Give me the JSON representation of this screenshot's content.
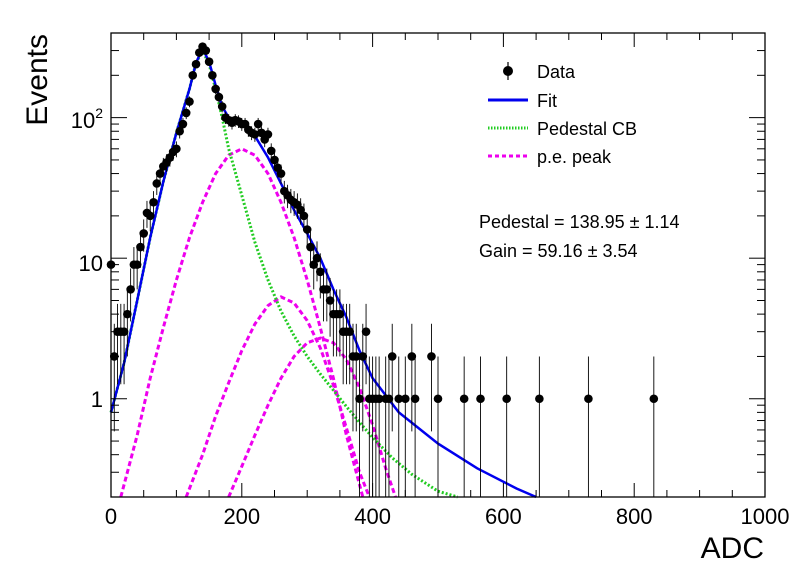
{
  "chart_data": {
    "type": "scatter",
    "title": "",
    "xlabel": "ADC",
    "ylabel": "Events",
    "xlim": [
      0,
      1000
    ],
    "ylim": [
      0.2,
      400
    ],
    "y_scale": "log",
    "grid": false,
    "legend_position": "top-right",
    "x_ticks": [
      "0",
      "200",
      "400",
      "600",
      "800",
      "1000"
    ],
    "y_ticks": [
      {
        "value": 1,
        "base": "1",
        "exp": ""
      },
      {
        "value": 10,
        "base": "10",
        "exp": ""
      },
      {
        "value": 100,
        "base": "10",
        "exp": "2"
      }
    ],
    "legend": [
      {
        "label": "Data",
        "style": "marker",
        "color": "#000000"
      },
      {
        "label": "Fit",
        "style": "solid",
        "color": "#0000ee"
      },
      {
        "label": "Pedestal CB",
        "style": "dotted",
        "color": "#22cc22"
      },
      {
        "label": "p.e. peak",
        "style": "dashed",
        "color": "#ee00ee"
      }
    ],
    "annotations": [
      "Pedestal = 138.95 ± 1.14",
      "Gain = 59.16 ± 3.54"
    ],
    "fit_parameters": {
      "pedestal": 138.95,
      "pedestal_err": 1.14,
      "gain": 59.16,
      "gain_err": 3.54
    },
    "series": [
      {
        "name": "Data",
        "kind": "points",
        "points": [
          [
            0,
            9
          ],
          [
            5,
            2
          ],
          [
            10,
            3
          ],
          [
            15,
            3
          ],
          [
            20,
            3
          ],
          [
            25,
            4
          ],
          [
            30,
            6
          ],
          [
            35,
            9
          ],
          [
            40,
            9
          ],
          [
            45,
            12
          ],
          [
            50,
            15
          ],
          [
            55,
            21
          ],
          [
            60,
            20
          ],
          [
            65,
            25
          ],
          [
            70,
            34
          ],
          [
            75,
            40
          ],
          [
            80,
            45
          ],
          [
            85,
            48
          ],
          [
            90,
            52
          ],
          [
            95,
            57
          ],
          [
            100,
            60
          ],
          [
            105,
            80
          ],
          [
            110,
            90
          ],
          [
            115,
            108
          ],
          [
            120,
            130
          ],
          [
            125,
            200
          ],
          [
            130,
            240
          ],
          [
            135,
            290
          ],
          [
            140,
            320
          ],
          [
            145,
            300
          ],
          [
            150,
            250
          ],
          [
            155,
            200
          ],
          [
            160,
            160
          ],
          [
            165,
            140
          ],
          [
            170,
            120
          ],
          [
            175,
            100
          ],
          [
            180,
            96
          ],
          [
            185,
            92
          ],
          [
            190,
            96
          ],
          [
            195,
            94
          ],
          [
            200,
            90
          ],
          [
            205,
            90
          ],
          [
            210,
            82
          ],
          [
            215,
            78
          ],
          [
            220,
            76
          ],
          [
            225,
            90
          ],
          [
            230,
            78
          ],
          [
            235,
            70
          ],
          [
            240,
            76
          ],
          [
            245,
            58
          ],
          [
            250,
            50
          ],
          [
            255,
            44
          ],
          [
            260,
            40
          ],
          [
            265,
            30
          ],
          [
            270,
            28
          ],
          [
            275,
            26
          ],
          [
            280,
            25
          ],
          [
            285,
            24
          ],
          [
            290,
            22
          ],
          [
            295,
            20
          ],
          [
            300,
            16
          ],
          [
            305,
            12
          ],
          [
            310,
            9
          ],
          [
            315,
            10
          ],
          [
            320,
            8
          ],
          [
            325,
            6
          ],
          [
            330,
            6
          ],
          [
            335,
            5
          ],
          [
            340,
            4
          ],
          [
            345,
            4
          ],
          [
            350,
            4
          ],
          [
            355,
            3
          ],
          [
            360,
            3
          ],
          [
            365,
            3
          ],
          [
            370,
            2
          ],
          [
            375,
            2
          ],
          [
            380,
            1
          ],
          [
            385,
            2
          ],
          [
            390,
            3
          ],
          [
            395,
            1
          ],
          [
            400,
            1
          ],
          [
            405,
            1
          ],
          [
            410,
            1
          ],
          [
            420,
            1
          ],
          [
            425,
            1
          ],
          [
            430,
            2
          ],
          [
            440,
            1
          ],
          [
            450,
            1
          ],
          [
            460,
            2
          ],
          [
            465,
            1
          ],
          [
            490,
            2
          ],
          [
            500,
            1
          ],
          [
            540,
            1
          ],
          [
            565,
            1
          ],
          [
            605,
            1
          ],
          [
            655,
            1
          ],
          [
            730,
            1
          ],
          [
            830,
            1
          ]
        ]
      },
      {
        "name": "Fit",
        "kind": "curve",
        "points": [
          [
            0,
            0.8
          ],
          [
            20,
            1.8
          ],
          [
            40,
            5
          ],
          [
            60,
            14
          ],
          [
            80,
            35
          ],
          [
            100,
            78
          ],
          [
            120,
            160
          ],
          [
            130,
            245
          ],
          [
            140,
            310
          ],
          [
            150,
            250
          ],
          [
            160,
            170
          ],
          [
            170,
            120
          ],
          [
            180,
            100
          ],
          [
            190,
            96
          ],
          [
            200,
            92
          ],
          [
            210,
            84
          ],
          [
            220,
            74
          ],
          [
            240,
            52
          ],
          [
            260,
            34
          ],
          [
            280,
            22
          ],
          [
            300,
            15
          ],
          [
            320,
            10
          ],
          [
            340,
            6
          ],
          [
            360,
            3.8
          ],
          [
            380,
            2.2
          ],
          [
            400,
            1.4
          ],
          [
            440,
            0.8
          ],
          [
            500,
            0.48
          ],
          [
            560,
            0.32
          ],
          [
            620,
            0.23
          ],
          [
            650,
            0.2
          ]
        ]
      },
      {
        "name": "Pedestal CB",
        "kind": "curve",
        "points": [
          [
            0,
            0.8
          ],
          [
            20,
            1.8
          ],
          [
            40,
            5
          ],
          [
            60,
            14
          ],
          [
            80,
            35
          ],
          [
            100,
            78
          ],
          [
            120,
            160
          ],
          [
            130,
            245
          ],
          [
            140,
            300
          ],
          [
            150,
            240
          ],
          [
            160,
            160
          ],
          [
            170,
            100
          ],
          [
            180,
            60
          ],
          [
            200,
            28
          ],
          [
            220,
            13
          ],
          [
            240,
            7
          ],
          [
            260,
            4.2
          ],
          [
            280,
            2.8
          ],
          [
            300,
            2
          ],
          [
            320,
            1.5
          ],
          [
            340,
            1.15
          ],
          [
            360,
            0.88
          ],
          [
            380,
            0.68
          ],
          [
            400,
            0.53
          ],
          [
            430,
            0.38
          ],
          [
            460,
            0.29
          ],
          [
            500,
            0.22
          ],
          [
            530,
            0.2
          ]
        ]
      },
      {
        "name": "p.e. peak 1",
        "kind": "curve",
        "points": [
          [
            15,
            0.2
          ],
          [
            40,
            0.55
          ],
          [
            60,
            1.4
          ],
          [
            80,
            3.2
          ],
          [
            100,
            7
          ],
          [
            120,
            14
          ],
          [
            140,
            25
          ],
          [
            160,
            40
          ],
          [
            180,
            54
          ],
          [
            200,
            60
          ],
          [
            220,
            54
          ],
          [
            240,
            40
          ],
          [
            260,
            25
          ],
          [
            280,
            14
          ],
          [
            300,
            7
          ],
          [
            320,
            3.2
          ],
          [
            340,
            1.4
          ],
          [
            360,
            0.55
          ],
          [
            385,
            0.2
          ]
        ]
      },
      {
        "name": "p.e. peak 2",
        "kind": "curve",
        "points": [
          [
            115,
            0.2
          ],
          [
            140,
            0.4
          ],
          [
            160,
            0.75
          ],
          [
            180,
            1.3
          ],
          [
            200,
            2.2
          ],
          [
            220,
            3.4
          ],
          [
            240,
            4.6
          ],
          [
            260,
            5.3
          ],
          [
            280,
            4.8
          ],
          [
            300,
            3.6
          ],
          [
            320,
            2.3
          ],
          [
            340,
            1.25
          ],
          [
            360,
            0.62
          ],
          [
            380,
            0.3
          ],
          [
            395,
            0.2
          ]
        ]
      },
      {
        "name": "p.e. peak 3",
        "kind": "curve",
        "points": [
          [
            180,
            0.2
          ],
          [
            200,
            0.33
          ],
          [
            220,
            0.55
          ],
          [
            240,
            0.9
          ],
          [
            260,
            1.4
          ],
          [
            280,
            2
          ],
          [
            300,
            2.5
          ],
          [
            320,
            2.7
          ],
          [
            340,
            2.5
          ],
          [
            360,
            1.9
          ],
          [
            380,
            1.2
          ],
          [
            400,
            0.65
          ],
          [
            420,
            0.32
          ],
          [
            435,
            0.2
          ]
        ]
      }
    ]
  }
}
